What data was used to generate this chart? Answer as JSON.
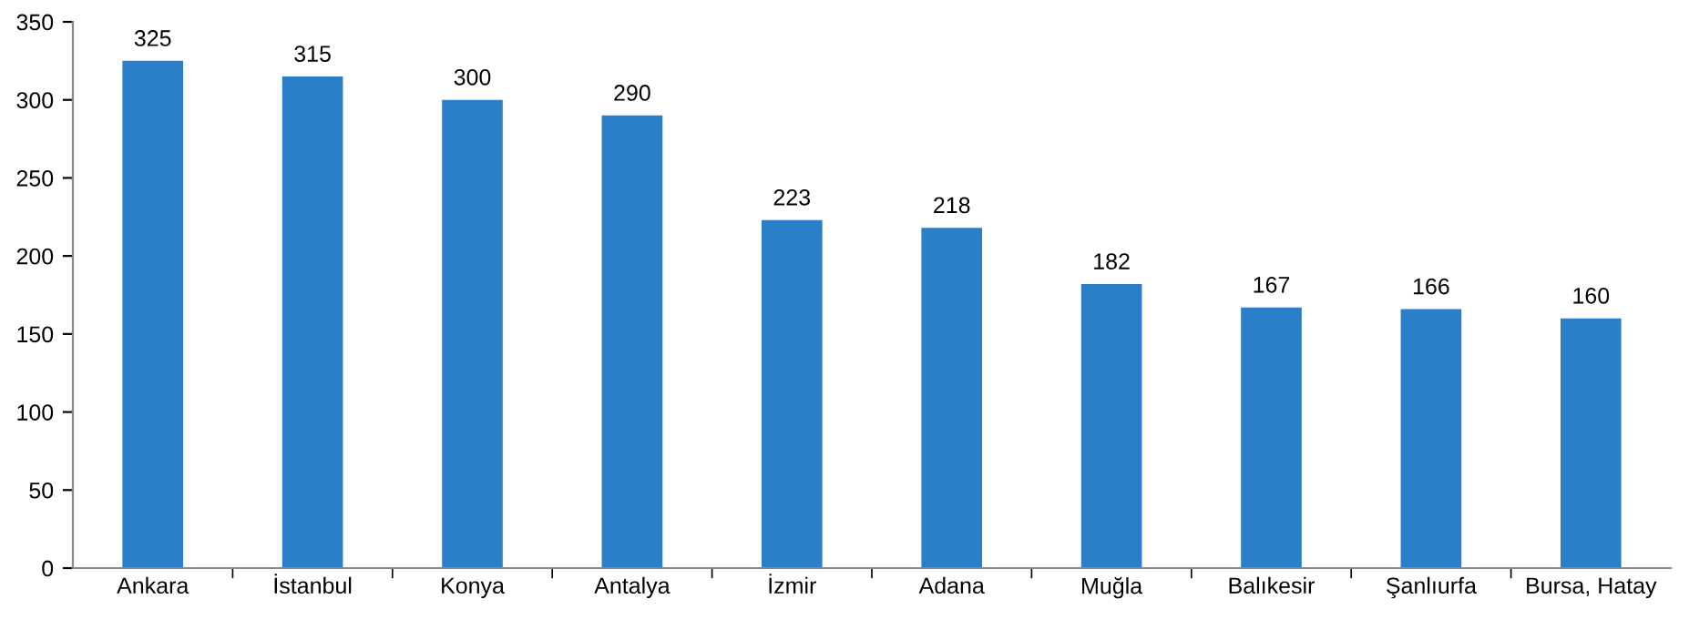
{
  "chart_data": {
    "type": "bar",
    "categories": [
      "Ankara",
      "İstanbul",
      "Konya",
      "Antalya",
      "İzmir",
      "Adana",
      "Muğla",
      "Balıkesir",
      "Şanlıurfa",
      "Bursa, Hatay"
    ],
    "values": [
      325,
      315,
      300,
      290,
      223,
      218,
      182,
      167,
      166,
      160
    ],
    "color": "#2b7fc8",
    "ylim": [
      0,
      350
    ],
    "yticks": [
      0,
      50,
      100,
      150,
      200,
      250,
      300,
      350
    ],
    "grid": false,
    "data_labels": true
  }
}
